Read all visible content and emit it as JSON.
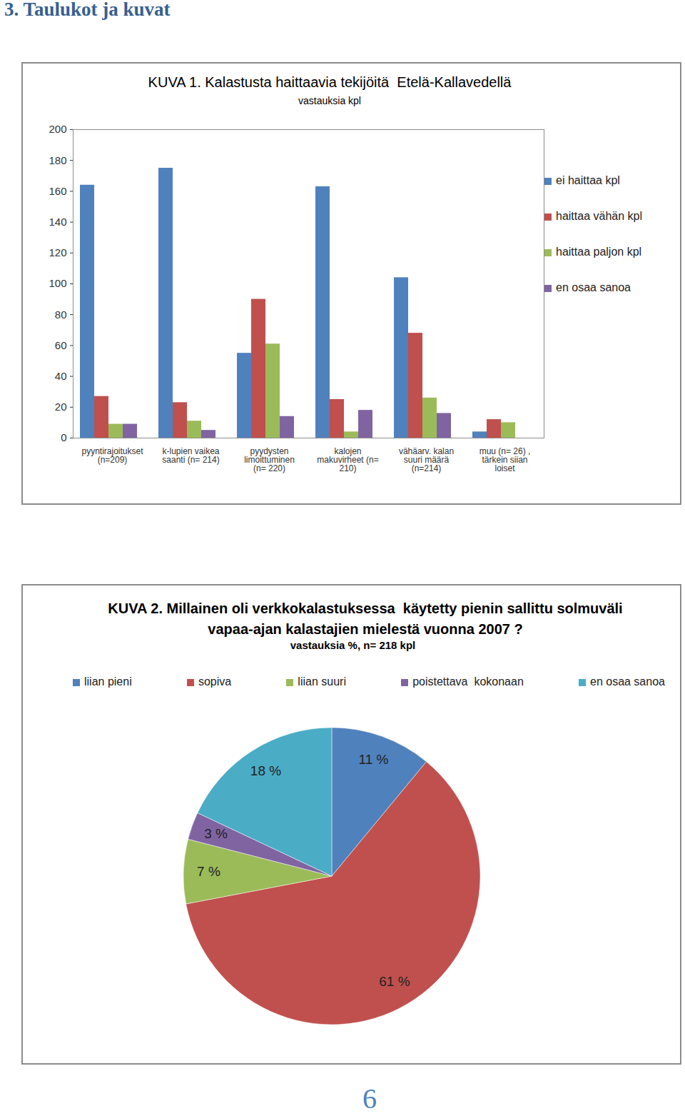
{
  "page": {
    "heading": "3. Taulukot ja kuvat",
    "page_number": 6
  },
  "chart_data": [
    {
      "type": "bar",
      "title": "KUVA 1. Kalastusta haittaavia tekijöitä  Etelä-Kallavedellä",
      "subtitle": "vastauksia kpl",
      "categories": [
        "pyyntirajoitukset (n=209)",
        "k-lupien vaikea saanti (n= 214)",
        "pyydysten limoittuminen (n= 220)",
        "kalojen makuvirheet (n= 210)",
        "vähäarv. kalan suuri määrä (n=214)",
        "muu (n= 26) , tärkein siian loiset"
      ],
      "series": [
        {
          "name": "ei haittaa kpl",
          "color": "#4F81BD",
          "values": [
            164,
            175,
            55,
            163,
            104,
            4
          ]
        },
        {
          "name": "haittaa vähän kpl",
          "color": "#C0504D",
          "values": [
            27,
            23,
            90,
            25,
            68,
            12
          ]
        },
        {
          "name": "haittaa paljon kpl",
          "color": "#9BBB59",
          "values": [
            9,
            11,
            61,
            4,
            26,
            10
          ]
        },
        {
          "name": "en osaa sanoa",
          "color": "#8064A2",
          "values": [
            9,
            5,
            14,
            18,
            16,
            0
          ]
        }
      ],
      "ylim": [
        0,
        200
      ],
      "yticks": [
        0,
        20,
        40,
        60,
        80,
        100,
        120,
        140,
        160,
        180,
        200
      ],
      "grid": false,
      "legend": "right"
    },
    {
      "type": "pie",
      "title": "KUVA 2. Millainen oli verkkokalastuksessa  käytetty pienin sallittu solmuväli vapaa-ajan kalastajien mielestä vuonna 2007 ?",
      "subtitle": "vastauksia %, n= 218  kpl",
      "categories": [
        "liian pieni",
        "sopiva",
        "liian suuri",
        "poistettava  kokonaan",
        "en osaa sanoa"
      ],
      "values": [
        11,
        61,
        7,
        3,
        18
      ],
      "value_labels": [
        "11 %",
        "61 %",
        "7 %",
        "3 %",
        "18 %"
      ],
      "colors": [
        "#4F81BD",
        "#C0504D",
        "#9BBB59",
        "#8064A2",
        "#4BACC6"
      ],
      "data_labels": true,
      "legend": "top"
    }
  ]
}
